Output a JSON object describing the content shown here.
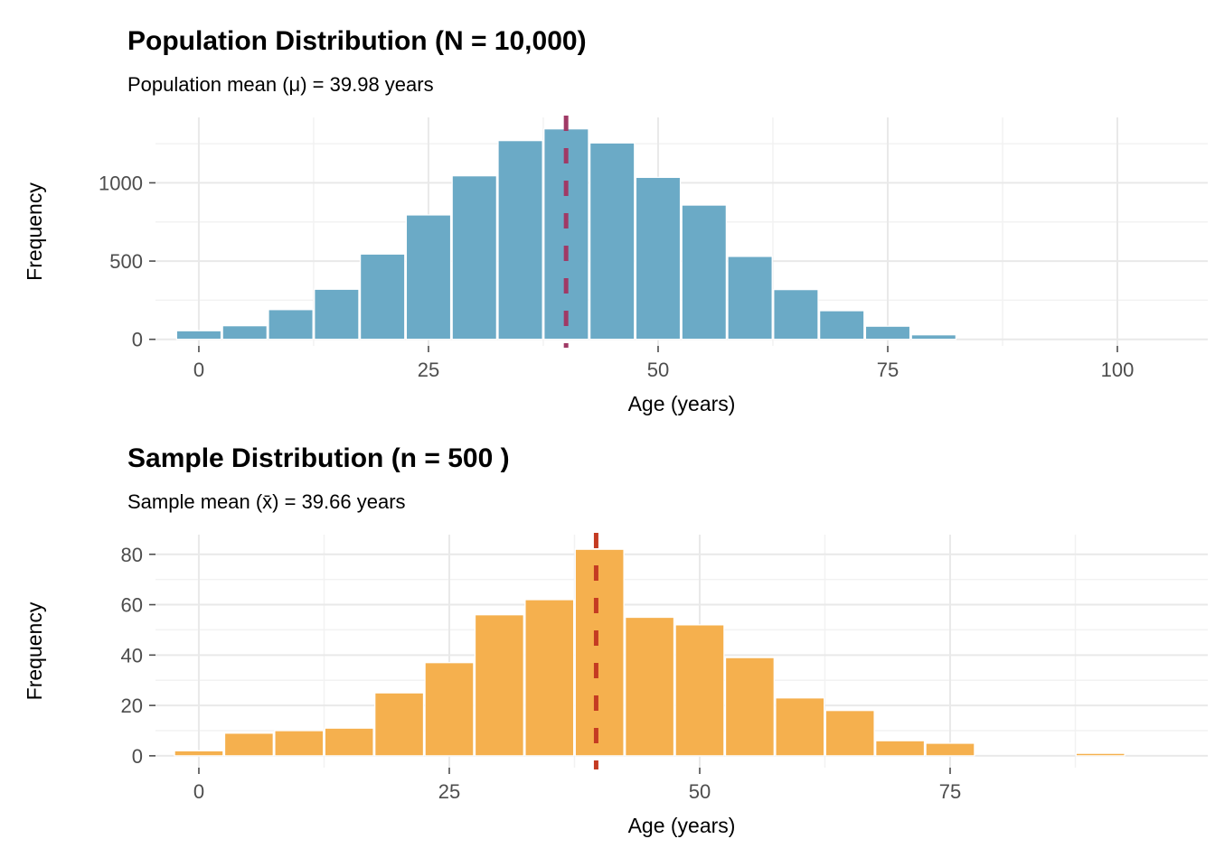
{
  "page": {
    "background": "#FFFFFF"
  },
  "chart_data": [
    {
      "id": "population",
      "type": "bar",
      "title": "Population Distribution (N = 10,000)",
      "subtitle": "Population mean (μ) = 39.98 years",
      "xlabel": "Age (years)",
      "ylabel": "Frequency",
      "bar_color": "#6BAAC6",
      "bar_edge_color": "#FFFFFF",
      "mean_line": {
        "value": 39.98,
        "color": "#A03A66",
        "style": "dashed"
      },
      "bin_width": 5,
      "bin_centers": [
        0,
        5,
        10,
        15,
        20,
        25,
        30,
        35,
        40,
        45,
        50,
        55,
        60,
        65,
        70,
        75,
        80
      ],
      "values": [
        55,
        87,
        190,
        320,
        545,
        795,
        1045,
        1270,
        1345,
        1255,
        1035,
        858,
        530,
        318,
        183,
        84,
        29
      ],
      "x_ticks": [
        0,
        25,
        50,
        75,
        100
      ],
      "y_ticks": [
        0,
        500,
        1000
      ],
      "x_minor": [
        12.5,
        37.5,
        62.5,
        87.5
      ],
      "y_minor": [
        250,
        750,
        1250
      ],
      "x_domain": [
        -4.72,
        109.84
      ],
      "y_domain": [
        -42,
        1418
      ],
      "grid": "on",
      "legend": "none"
    },
    {
      "id": "sample",
      "type": "bar",
      "title": "Sample Distribution (n = 500 )",
      "subtitle": "Sample mean (x̄) = 39.66 years",
      "xlabel": "Age (years)",
      "ylabel": "Frequency",
      "bar_color": "#F5B04E",
      "bar_edge_color": "#FFFFFF",
      "mean_line": {
        "value": 39.66,
        "color": "#C43B22",
        "style": "dashed"
      },
      "bin_width": 5,
      "bin_centers": [
        0,
        5,
        10,
        15,
        20,
        25,
        30,
        35,
        40,
        45,
        50,
        55,
        60,
        65,
        70,
        75,
        80,
        85,
        90
      ],
      "values": [
        2,
        9,
        10,
        11,
        25,
        37,
        56,
        62,
        82,
        55,
        52,
        39,
        23,
        18,
        6,
        5,
        0,
        0,
        1
      ],
      "x_ticks": [
        0,
        25,
        50,
        75
      ],
      "y_ticks": [
        0,
        20,
        40,
        60,
        80
      ],
      "x_minor": [
        12.5,
        37.5,
        62.5,
        87.5
      ],
      "y_minor": [
        10,
        30,
        50,
        70
      ],
      "x_domain": [
        -4.33,
        100.72
      ],
      "y_domain": [
        -4.7,
        87.8
      ],
      "grid": "on",
      "legend": "none"
    }
  ],
  "style": {
    "grid_major_color": "#E9E9E9",
    "grid_minor_color": "#F2F2F2",
    "tick_mark_color": "#4D4D4D",
    "tick_label_color": "#4D4D4D",
    "title_color": "#000000"
  }
}
